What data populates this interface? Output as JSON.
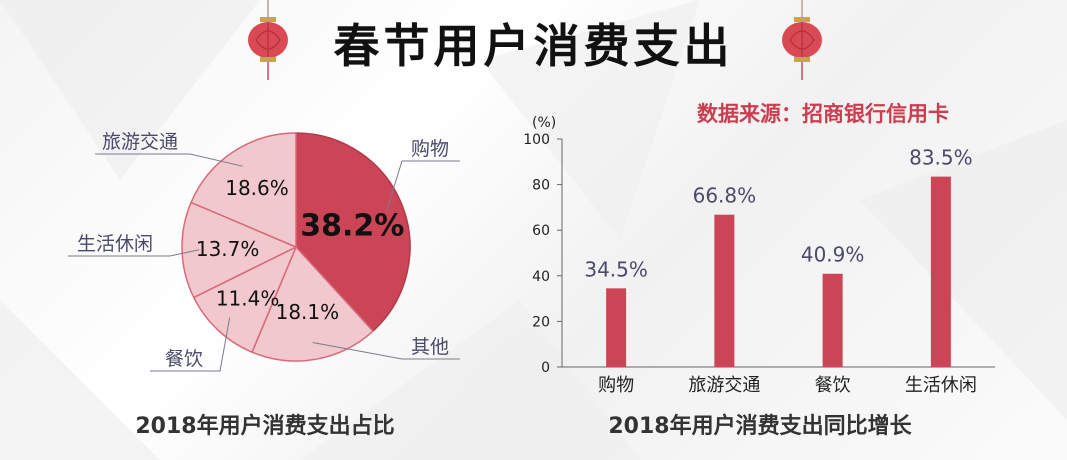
{
  "title": "春节用户消费支出",
  "source_note": "数据来源：招商银行信用卡",
  "colors": {
    "accent": "#cb4557",
    "light": "#f0c8cd",
    "label": "#4a4a6a",
    "dark": "#111111"
  },
  "icons": {
    "left": "lantern-icon",
    "right": "lantern-icon"
  },
  "chart_data": [
    {
      "type": "pie",
      "title": "2018年用户消费支出占比",
      "slices": [
        {
          "label": "购物",
          "value": 38.2,
          "text": "38.2%"
        },
        {
          "label": "其他",
          "value": 18.1,
          "text": "18.1%"
        },
        {
          "label": "餐饮",
          "value": 11.4,
          "text": "11.4%"
        },
        {
          "label": "生活休闲",
          "value": 13.7,
          "text": "13.7%"
        },
        {
          "label": "旅游交通",
          "value": 18.6,
          "text": "18.6%"
        }
      ]
    },
    {
      "type": "bar",
      "title": "2018年用户消费支出同比增长",
      "unit": "(%)",
      "categories": [
        "购物",
        "旅游交通",
        "餐饮",
        "生活休闲"
      ],
      "values": [
        34.5,
        66.8,
        40.9,
        83.5
      ],
      "value_labels": [
        "34.5%",
        "66.8%",
        "40.9%",
        "83.5%"
      ],
      "ylim": [
        0,
        100
      ],
      "yticks": [
        0,
        20,
        40,
        60,
        80,
        100
      ],
      "grid": false,
      "legend": "none"
    }
  ]
}
